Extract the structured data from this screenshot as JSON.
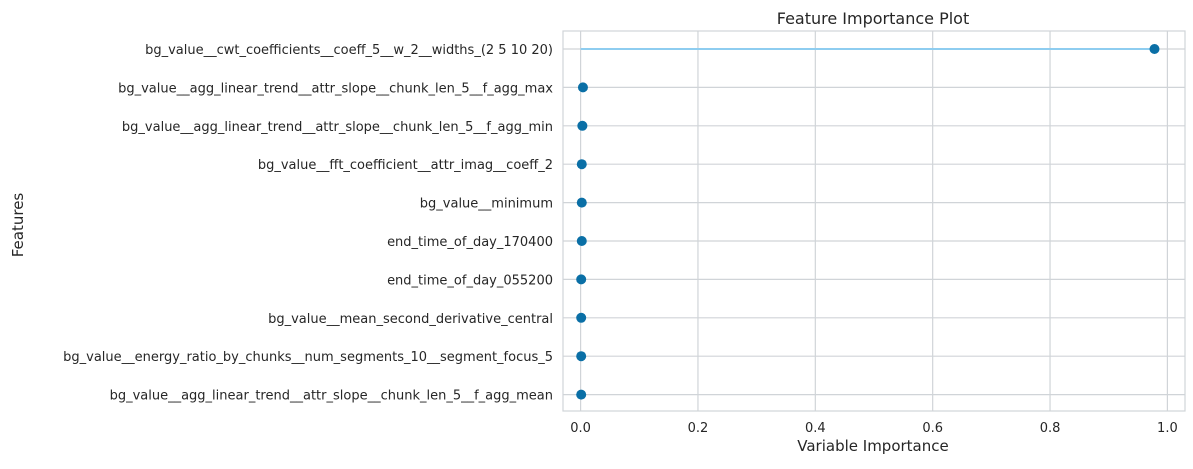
{
  "chart_data": {
    "type": "lollipop",
    "title": "Feature Importance Plot",
    "xlabel": "Variable Importance",
    "ylabel": "Features",
    "xlim": [
      -0.03,
      1.03
    ],
    "x_ticks": [
      0.0,
      0.2,
      0.4,
      0.6,
      0.8,
      1.0
    ],
    "x_tick_labels": [
      "0.0",
      "0.2",
      "0.4",
      "0.6",
      "0.8",
      "1.0"
    ],
    "grid": true,
    "colors": {
      "stem": "#8ecdf0",
      "marker": "#0a6fa6",
      "grid": "#d0d4d8",
      "background": "#ffffff"
    },
    "categories": [
      "bg_value__cwt_coefficients__coeff_5__w_2__widths_(2 5 10 20)",
      "bg_value__agg_linear_trend__attr_slope__chunk_len_5__f_agg_max",
      "bg_value__agg_linear_trend__attr_slope__chunk_len_5__f_agg_min",
      "bg_value__fft_coefficient__attr_imag__coeff_2",
      "bg_value__minimum",
      "end_time_of_day_170400",
      "end_time_of_day_055200",
      "bg_value__mean_second_derivative_central",
      "bg_value__energy_ratio_by_chunks__num_segments_10__segment_focus_5",
      "bg_value__agg_linear_trend__attr_slope__chunk_len_5__f_agg_mean"
    ],
    "values": [
      0.978,
      0.004,
      0.003,
      0.002,
      0.002,
      0.002,
      0.001,
      0.001,
      0.001,
      0.001
    ]
  }
}
